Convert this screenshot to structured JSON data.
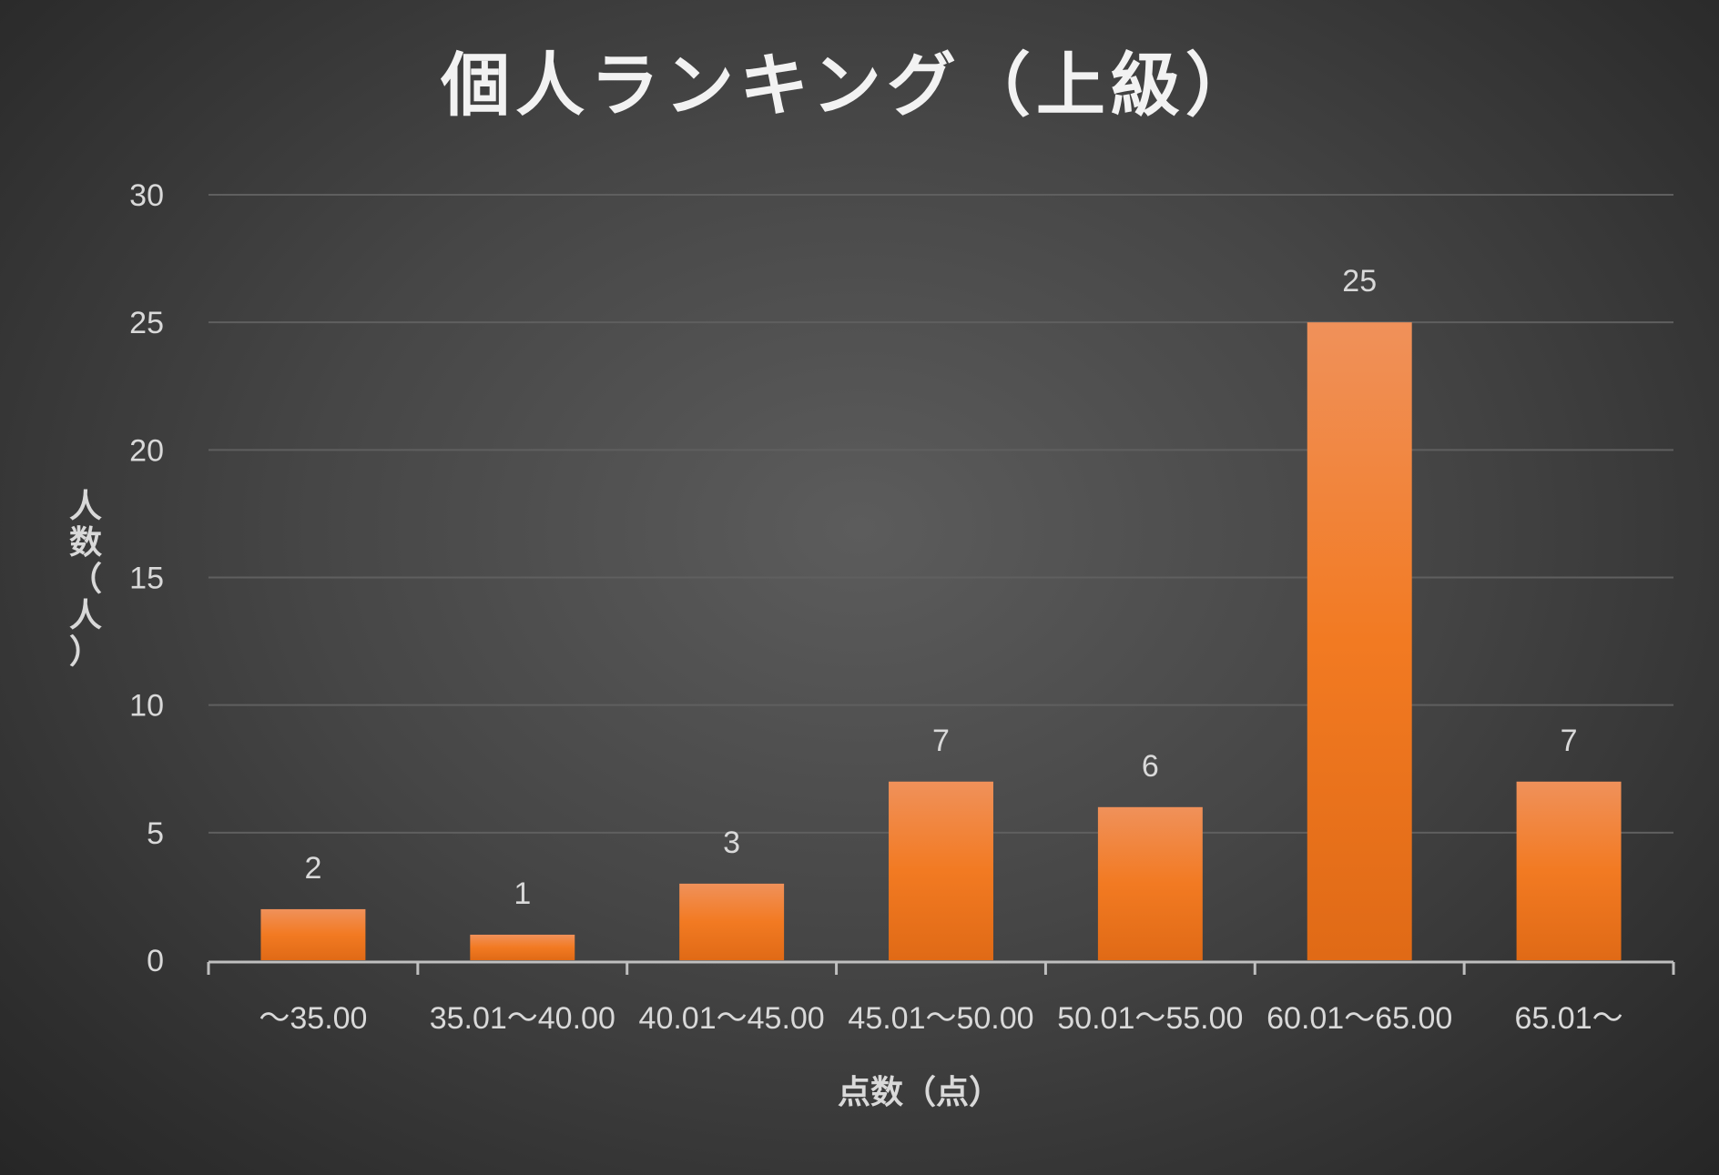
{
  "chart_data": {
    "type": "bar",
    "title": "個人ランキング（上級）",
    "xlabel": "点数（点）",
    "ylabel_chars": [
      "人",
      "数",
      "（",
      "人",
      "）"
    ],
    "categories": [
      "～35.00",
      "35.01～40.00",
      "40.01～45.00",
      "45.01～50.00",
      "50.01～55.00",
      "60.01～65.00",
      "65.01～"
    ],
    "values": [
      2,
      1,
      3,
      7,
      6,
      25,
      7
    ],
    "ylim": [
      0,
      30
    ],
    "yticks": [
      0,
      5,
      10,
      15,
      20,
      25,
      30
    ],
    "grid": true,
    "legend": "none",
    "colors": {
      "bar_top": "#f0915a",
      "bar_mid": "#f27a22",
      "bar_bottom": "#e06a16",
      "text": "#d9d9d9",
      "title": "#f2f2f2",
      "grid": "#5f5f5f",
      "axis": "#bfbfbf"
    }
  }
}
